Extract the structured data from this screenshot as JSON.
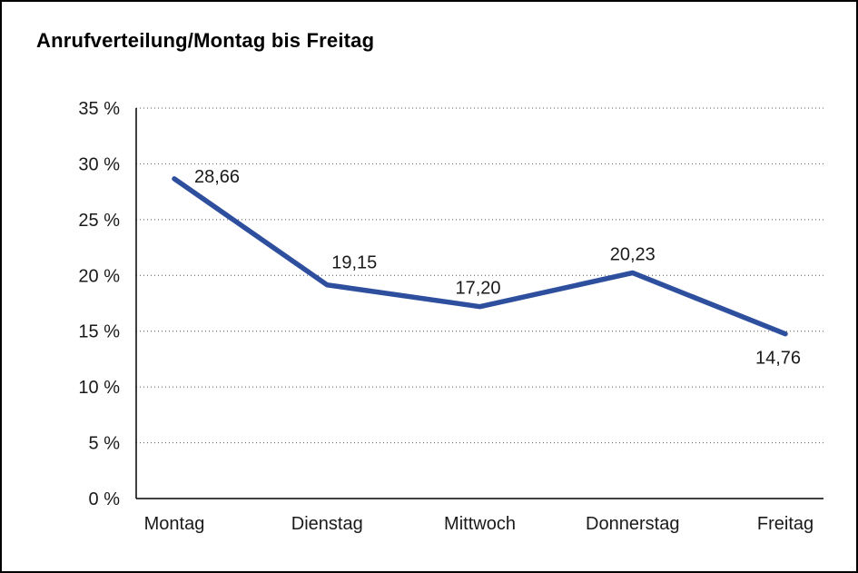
{
  "chart_data": {
    "type": "line",
    "title": "Anrufverteilung/Montag bis Freitag",
    "categories": [
      "Montag",
      "Dienstag",
      "Mittwoch",
      "Donnerstag",
      "Freitag"
    ],
    "series": [
      {
        "name": "Anrufverteilung",
        "values": [
          28.66,
          19.15,
          17.2,
          20.23,
          14.76
        ],
        "value_labels": [
          "28,66",
          "19,15",
          "17,20",
          "20,23",
          "14,76"
        ]
      }
    ],
    "ylim": [
      0,
      35
    ],
    "ytick_step": 5,
    "ytick_labels": [
      "0 %",
      "5 %",
      "10 %",
      "15 %",
      "20 %",
      "25 %",
      "30 %",
      "35 %"
    ],
    "grid": "horizontal-dotted",
    "legend": "none",
    "line_color": "#2e4f9e",
    "axis_color": "#000000",
    "grid_color": "#555555",
    "text_color": "#1a1a1a"
  }
}
